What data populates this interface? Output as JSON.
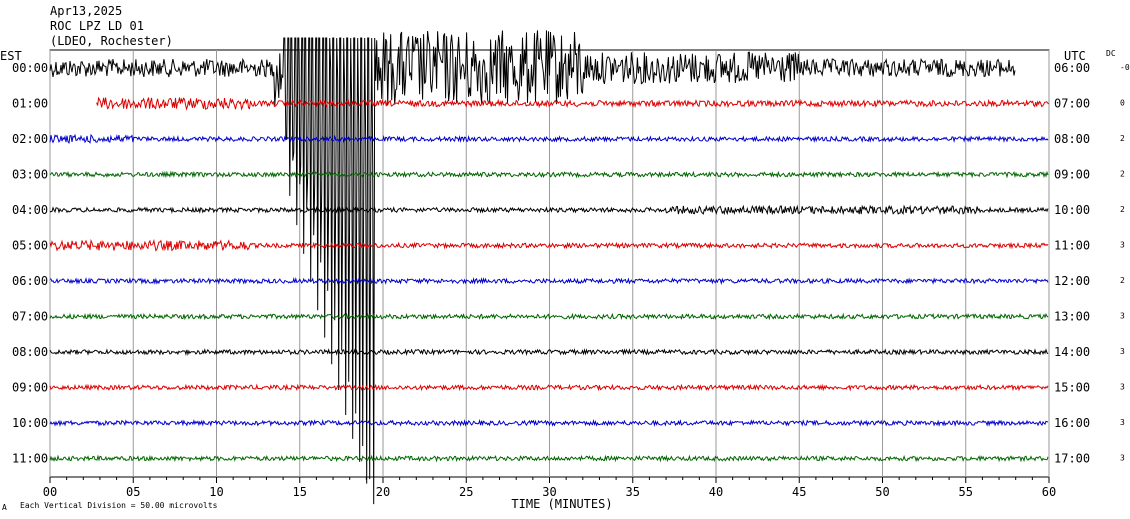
{
  "header": {
    "line1": "Apr13,2025",
    "line2": "ROC LPZ LD 01",
    "line3": "(LDEO, Rochester)"
  },
  "left_tz": "EST",
  "right_tz": "UTC",
  "dc_label": "DC",
  "xlabel": "TIME (MINUTES)",
  "footer": "Each Vertical Division =   50.00 microvolts",
  "footer_mark": "A",
  "chart_data": {
    "type": "line",
    "xlim": [
      0,
      60
    ],
    "x_ticks": [
      "00",
      "05",
      "10",
      "15",
      "20",
      "25",
      "30",
      "35",
      "40",
      "45",
      "50",
      "55",
      "60"
    ],
    "trace_colors": [
      "#000000",
      "#dd0000",
      "#0000cc",
      "#006600"
    ],
    "rows": [
      {
        "est": "00:00",
        "utc": "06:00",
        "dc": "-0",
        "color": "#000000"
      },
      {
        "est": "01:00",
        "utc": "07:00",
        "dc": "0",
        "color": "#dd0000"
      },
      {
        "est": "02:00",
        "utc": "08:00",
        "dc": "2",
        "color": "#0000cc"
      },
      {
        "est": "03:00",
        "utc": "09:00",
        "dc": "2",
        "color": "#006600"
      },
      {
        "est": "04:00",
        "utc": "10:00",
        "dc": "2",
        "color": "#000000"
      },
      {
        "est": "05:00",
        "utc": "11:00",
        "dc": "3",
        "color": "#dd0000"
      },
      {
        "est": "06:00",
        "utc": "12:00",
        "dc": "2",
        "color": "#0000cc"
      },
      {
        "est": "07:00",
        "utc": "13:00",
        "dc": "3",
        "color": "#006600"
      },
      {
        "est": "08:00",
        "utc": "14:00",
        "dc": "3",
        "color": "#000000"
      },
      {
        "est": "09:00",
        "utc": "15:00",
        "dc": "3",
        "color": "#dd0000"
      },
      {
        "est": "10:00",
        "utc": "16:00",
        "dc": "3",
        "color": "#0000cc"
      },
      {
        "est": "11:00",
        "utc": "17:00",
        "dc": "3",
        "color": "#006600"
      }
    ],
    "event_start_minute": 13.5,
    "event_peak_minute": 19,
    "trace_end_minute_row0": 58,
    "trace_start_minute_row1": 2.8
  }
}
